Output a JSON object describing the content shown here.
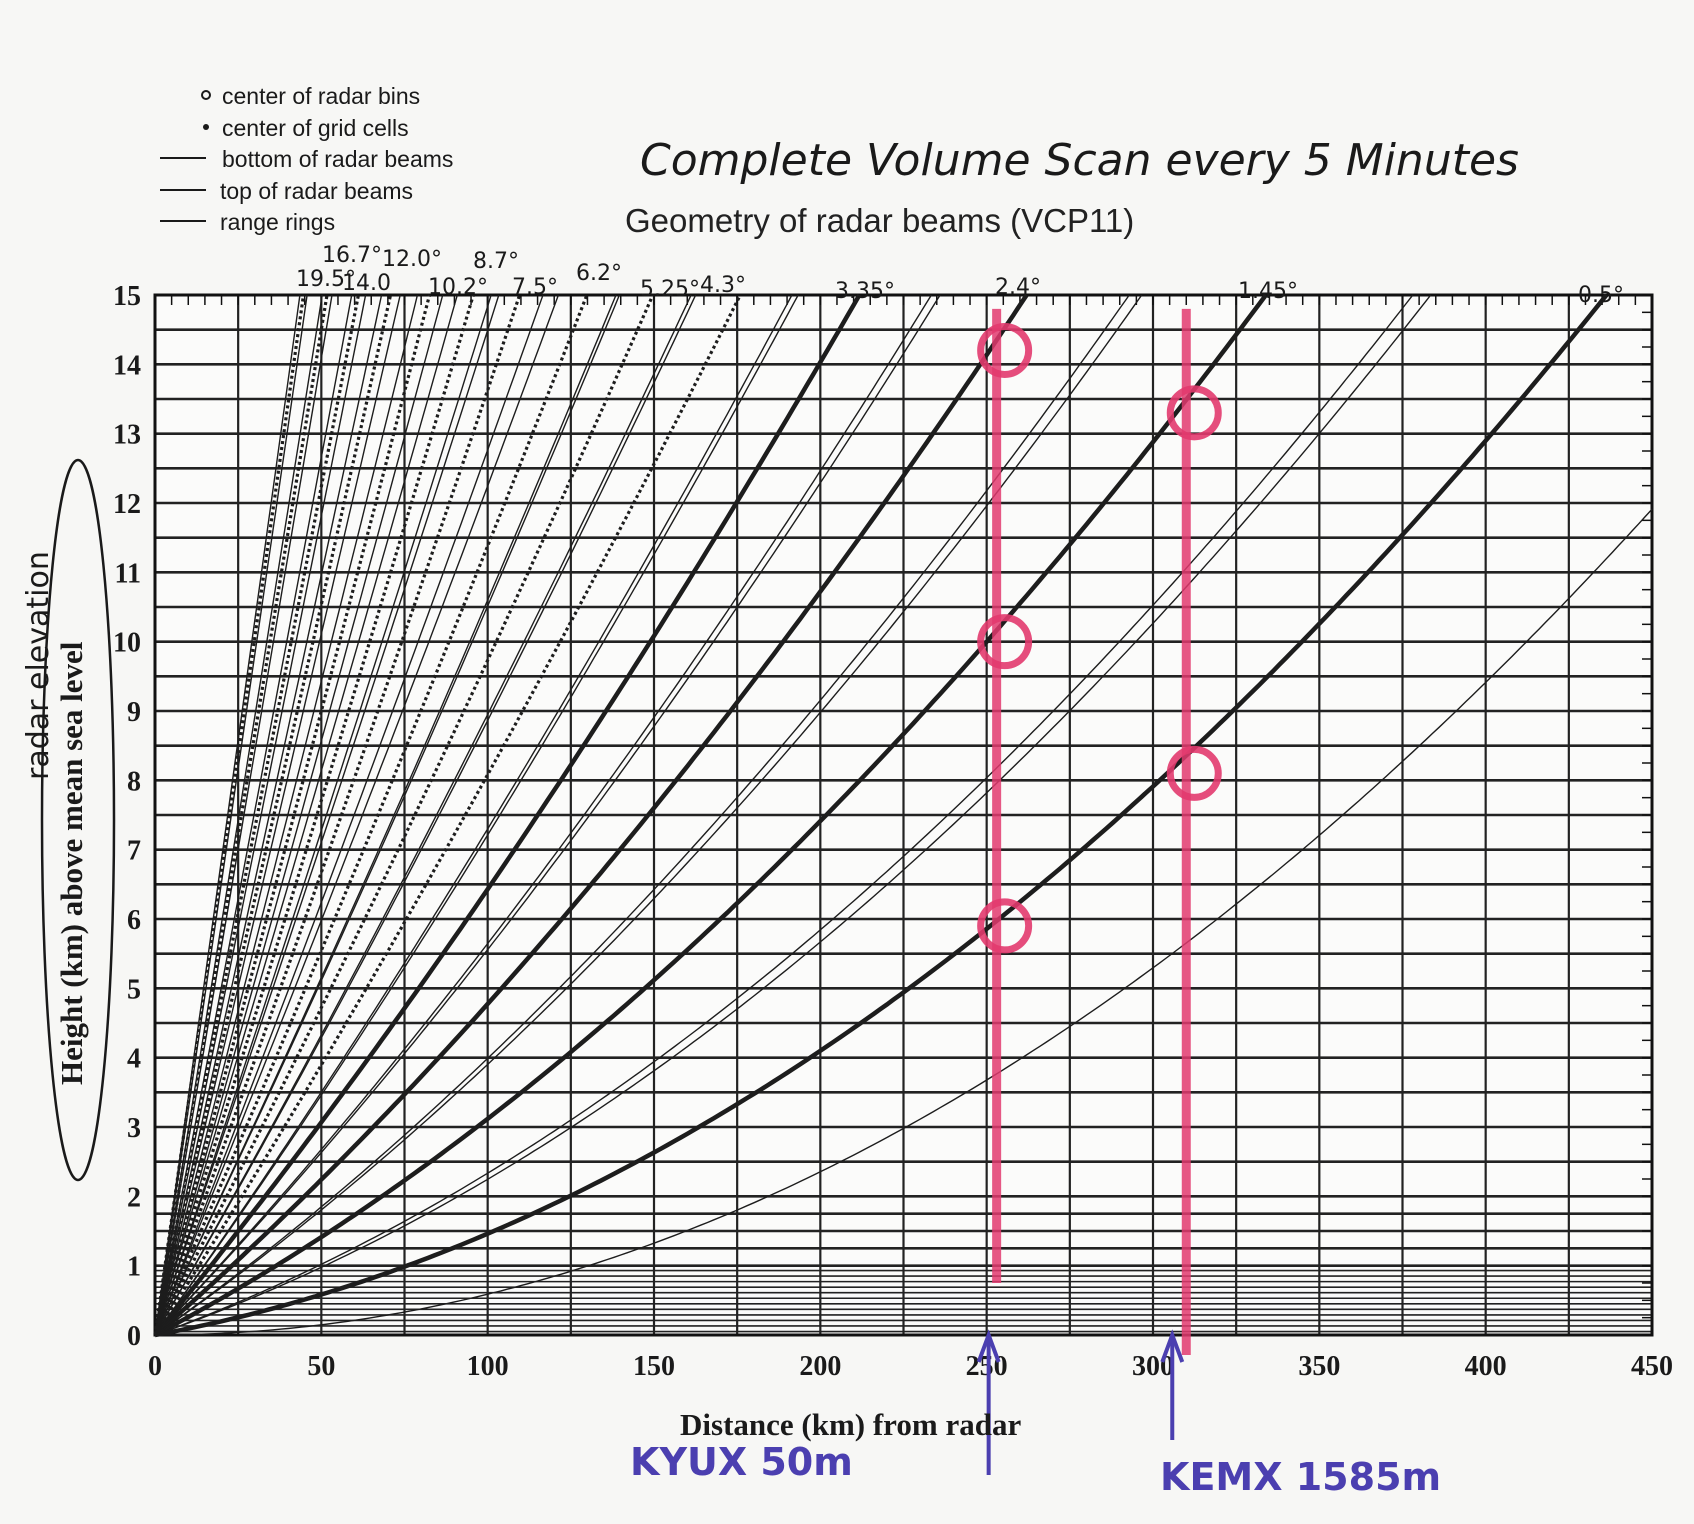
{
  "legend": [
    {
      "marker": "dot",
      "label": "center of radar bins"
    },
    {
      "marker": "dot",
      "label": "center of grid cells"
    },
    {
      "marker": "line",
      "label": "bottom of radar beams"
    },
    {
      "marker": "line",
      "label": "top of radar beams"
    },
    {
      "marker": "line",
      "label": "range rings"
    }
  ],
  "handwritten_title": "Complete Volume Scan every 5 Minutes",
  "side_annotation": "radar elevation",
  "annotation_color": "#e23a6e",
  "station_color": "#4b3fb0",
  "chart_data": {
    "type": "line",
    "title": "Geometry of radar beams (VCP11)",
    "xlabel": "Distance (km) from radar",
    "ylabel": "Height (km) above mean sea level",
    "xlim": [
      0,
      450
    ],
    "ylim": [
      0,
      15
    ],
    "x_ticks": [
      "0",
      "50",
      "100",
      "150",
      "200",
      "250",
      "300",
      "350",
      "400",
      "450"
    ],
    "y_ticks": [
      "0",
      "1",
      "2",
      "3",
      "4",
      "5",
      "6",
      "7",
      "8",
      "9",
      "10",
      "11",
      "12",
      "13",
      "14",
      "15"
    ],
    "grid": true,
    "elevation_angles": [
      {
        "label": "19.5°",
        "deg": 19.5
      },
      {
        "label": "16.7°",
        "deg": 16.7
      },
      {
        "label": "14.0",
        "deg": 14.0
      },
      {
        "label": "12.0°",
        "deg": 12.0
      },
      {
        "label": "10.2°",
        "deg": 10.2
      },
      {
        "label": "8.7°",
        "deg": 8.7
      },
      {
        "label": "7.5°",
        "deg": 7.5
      },
      {
        "label": "6.2°",
        "deg": 6.2
      },
      {
        "label": "5.25°",
        "deg": 5.25
      },
      {
        "label": "4.3°",
        "deg": 4.3
      },
      {
        "label": "3.35°",
        "deg": 3.35
      },
      {
        "label": "2.4°",
        "deg": 2.4
      },
      {
        "label": "1.45°",
        "deg": 1.45
      },
      {
        "label": "0.5°",
        "deg": 0.5
      }
    ],
    "annotations": [
      {
        "station": "KYUX 50m",
        "distance_km": 253,
        "circles_km": [
          14.2,
          10.0,
          5.9
        ]
      },
      {
        "station": "KEMX 1585m",
        "distance_km": 310,
        "circles_km": [
          13.3,
          8.1
        ]
      }
    ]
  }
}
